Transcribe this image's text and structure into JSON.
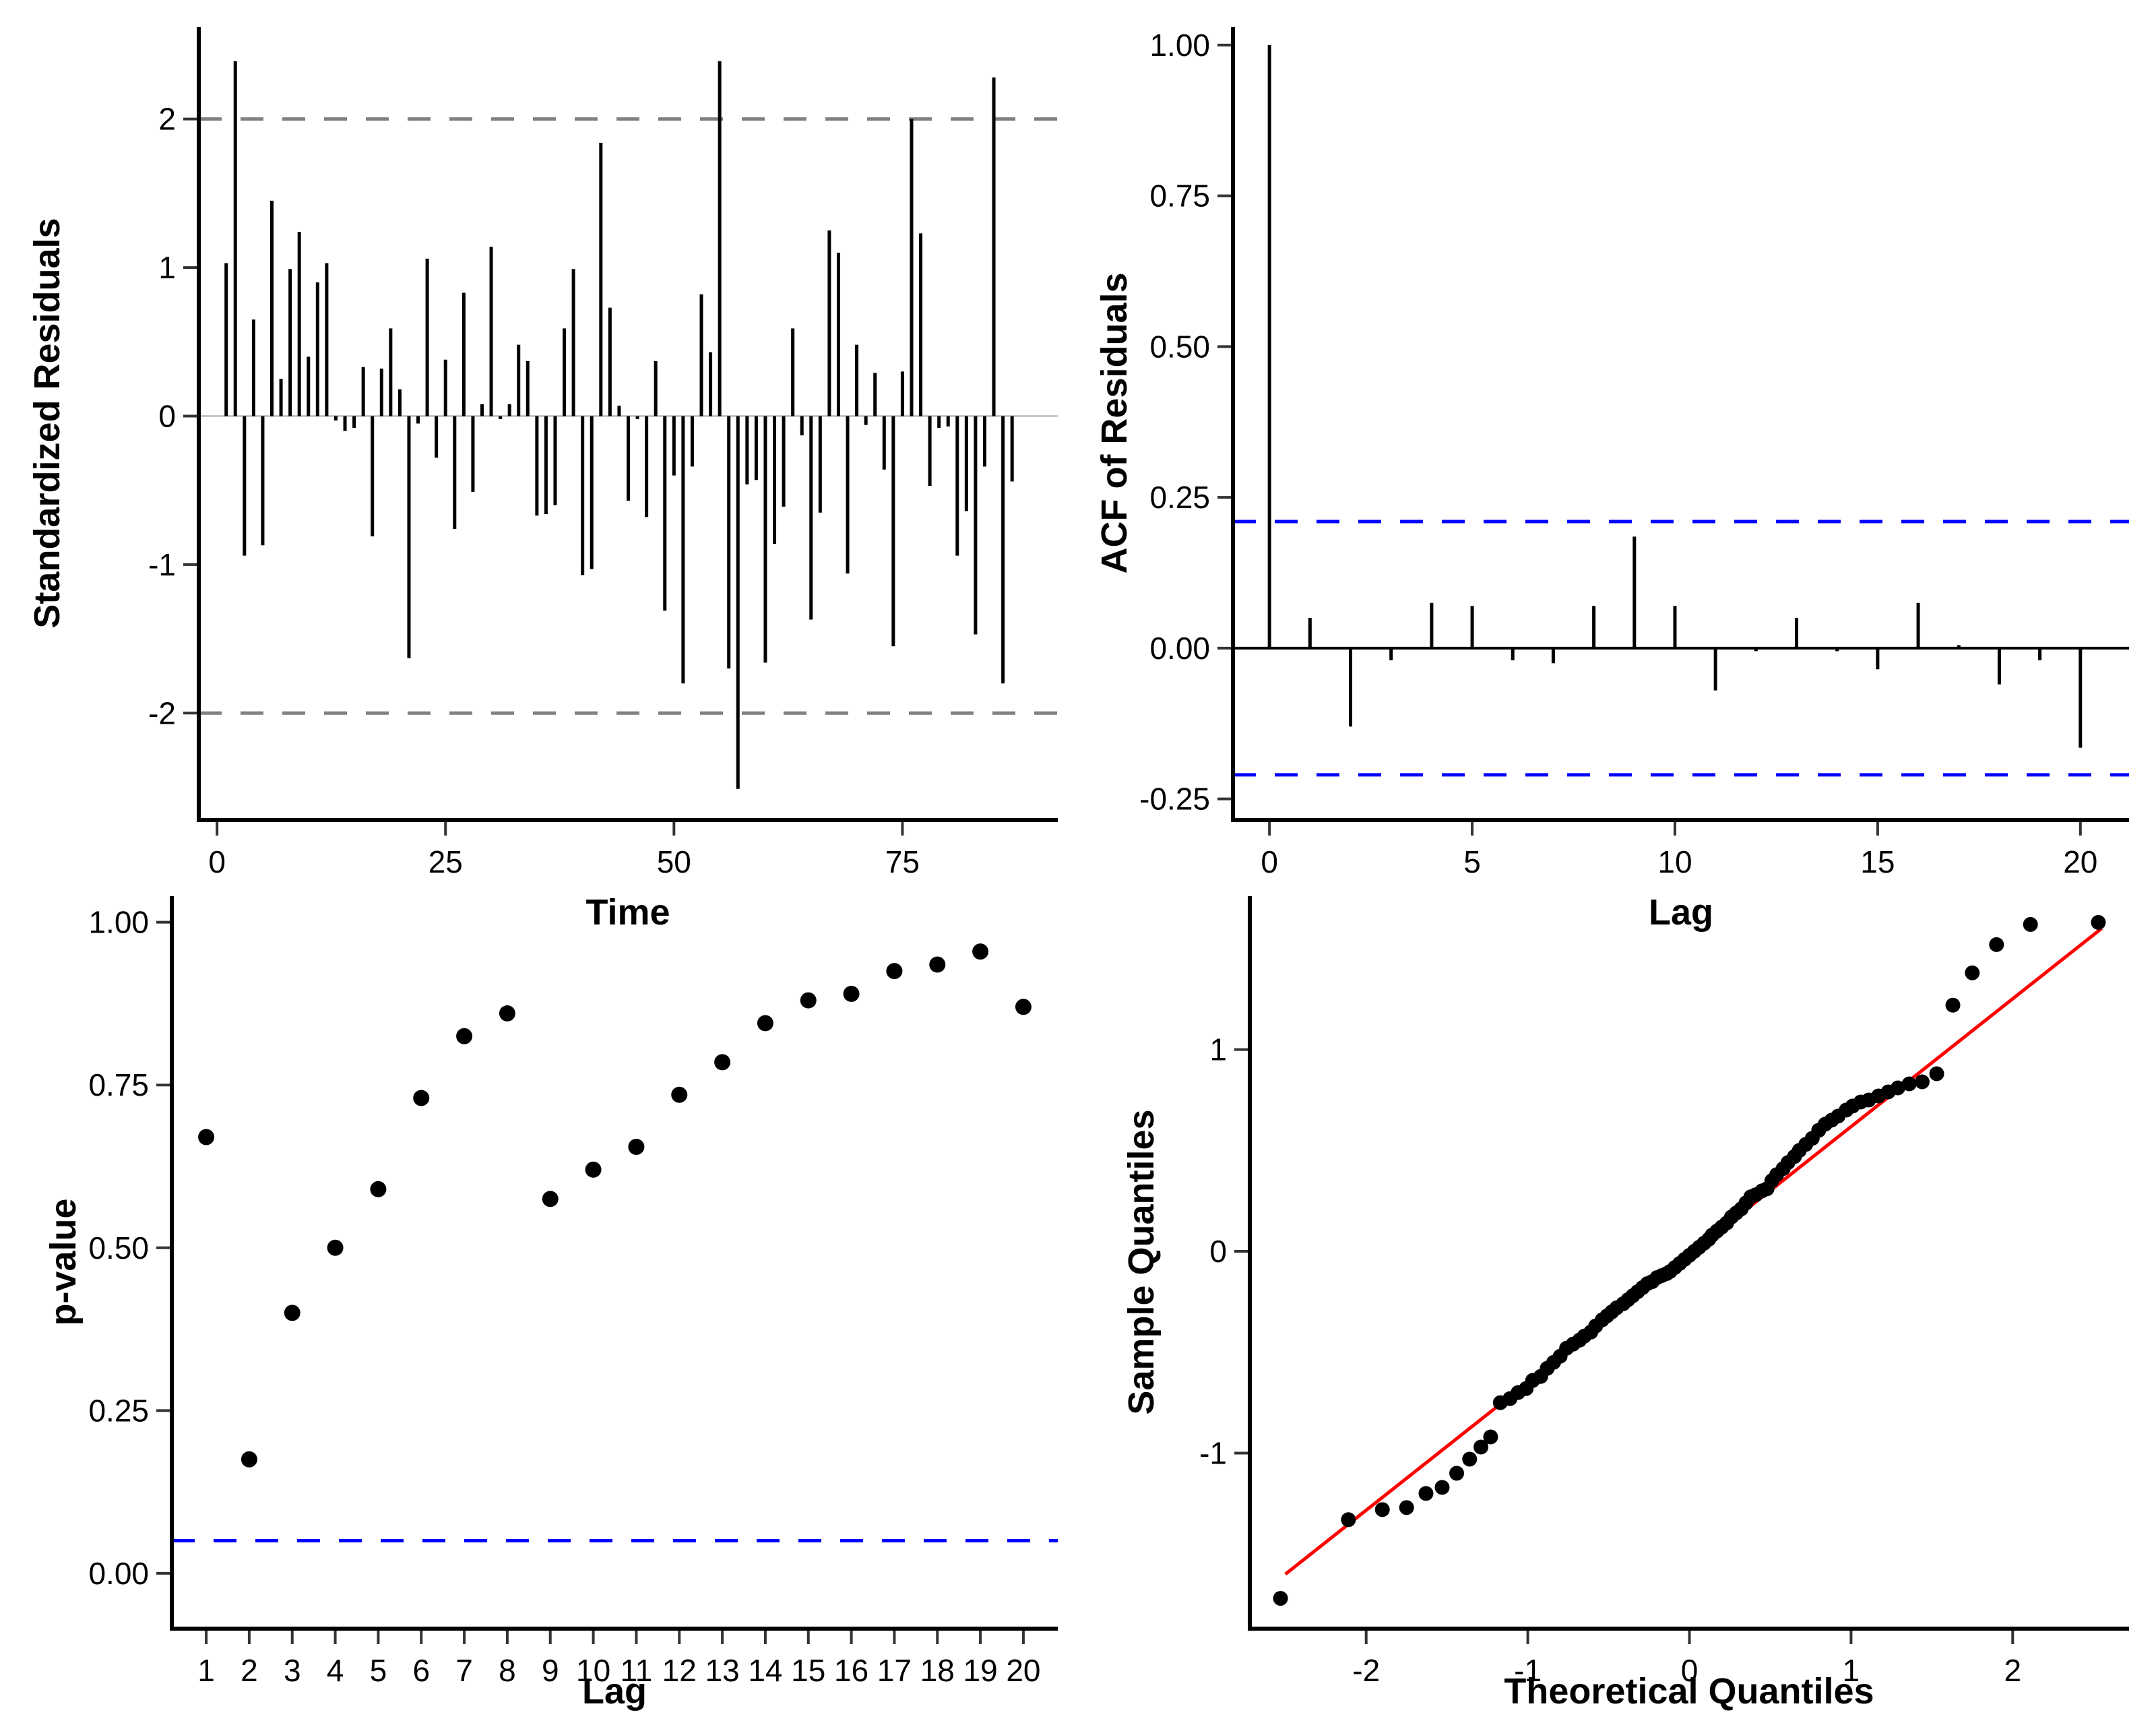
{
  "figure": {
    "background": "#FFFFFF",
    "description": "2x2 grid of time-series model residual diagnostic plots"
  },
  "colors": {
    "series": "#000000",
    "axis": "#000000",
    "tick": "#333333",
    "gray_dashed": "#808080",
    "zero_line_light": "#C8C8C8",
    "blue_dashed": "#0000FF",
    "red_line": "#FF0000"
  },
  "chart_data": [
    {
      "id": "residuals",
      "type": "bar",
      "title": "",
      "xlabel": "Time",
      "ylabel": "Standardized Residuals",
      "xlim": [
        -2,
        92
      ],
      "ylim": [
        -2.72,
        2.62
      ],
      "xticks": [
        0,
        25,
        50,
        75
      ],
      "xtick_labels": [
        "0",
        "25",
        "50",
        "75"
      ],
      "yticks": [
        -2,
        -1,
        0,
        1,
        2
      ],
      "ytick_labels": [
        "-2",
        "-1",
        "0",
        "1",
        "2"
      ],
      "grid": false,
      "legend": "none",
      "hlines": [
        {
          "y": 0,
          "style": "solid",
          "color": "#C8C8C8",
          "width": 3,
          "name": "zero-line"
        },
        {
          "y": 2,
          "style": "dashed",
          "color": "#808080",
          "width": 5,
          "name": "upper-2sd-line"
        },
        {
          "y": -2,
          "style": "dashed",
          "color": "#808080",
          "width": 5,
          "name": "lower-2sd-line"
        }
      ],
      "x": [
        1,
        2,
        3,
        4,
        5,
        6,
        7,
        8,
        9,
        10,
        11,
        12,
        13,
        14,
        15,
        16,
        17,
        18,
        19,
        20,
        21,
        22,
        23,
        24,
        25,
        26,
        27,
        28,
        29,
        30,
        31,
        32,
        33,
        34,
        35,
        36,
        37,
        38,
        39,
        40,
        41,
        42,
        43,
        44,
        45,
        46,
        47,
        48,
        49,
        50,
        51,
        52,
        53,
        54,
        55,
        56,
        57,
        58,
        59,
        60,
        61,
        62,
        63,
        64,
        65,
        66,
        67,
        68,
        69,
        70,
        71,
        72,
        73,
        74,
        75,
        76,
        77,
        78,
        79,
        80,
        81,
        82,
        83,
        84,
        85,
        86,
        87
      ],
      "values": [
        1.03,
        2.39,
        -0.94,
        0.65,
        -0.87,
        1.45,
        0.25,
        0.99,
        1.24,
        0.4,
        0.9,
        1.03,
        -0.03,
        -0.1,
        -0.08,
        0.33,
        -0.81,
        0.32,
        0.59,
        0.18,
        -1.63,
        -0.05,
        1.06,
        -0.28,
        0.38,
        -0.76,
        0.83,
        -0.51,
        0.08,
        1.14,
        -0.02,
        0.08,
        0.48,
        0.37,
        -0.67,
        -0.66,
        -0.6,
        0.59,
        0.99,
        -1.07,
        -1.03,
        1.84,
        0.73,
        0.07,
        -0.57,
        -0.02,
        -0.68,
        0.37,
        -1.31,
        -0.4,
        -1.8,
        -0.34,
        0.82,
        0.43,
        2.39,
        -1.7,
        -2.51,
        -0.46,
        -0.43,
        -1.66,
        -0.86,
        -0.61,
        0.59,
        -0.13,
        -1.37,
        -0.65,
        1.25,
        1.1,
        -1.06,
        0.48,
        -0.06,
        0.29,
        -0.36,
        -1.55,
        0.3,
        2.0,
        1.23,
        -0.47,
        -0.08,
        -0.07,
        -0.94,
        -0.64,
        -1.47,
        -0.34,
        2.28,
        -1.8,
        -0.44
      ]
    },
    {
      "id": "acf",
      "type": "bar",
      "title": "",
      "xlabel": "Lag",
      "ylabel": "ACF of Residuals",
      "xlim": [
        -0.9,
        21.2
      ],
      "ylim": [
        -0.285,
        1.03
      ],
      "xticks": [
        0,
        5,
        10,
        15,
        20
      ],
      "xtick_labels": [
        "0",
        "5",
        "10",
        "15",
        "20"
      ],
      "yticks": [
        1.0,
        0.75,
        0.5,
        0.25,
        0.0,
        -0.25
      ],
      "ytick_labels": [
        "1.00",
        "0.75",
        "0.50",
        "0.25",
        "0.00",
        "-0.25"
      ],
      "grid": false,
      "legend": "none",
      "confidence_bound": 0.21,
      "hlines": [
        {
          "y": 0,
          "style": "solid",
          "color": "#000000",
          "width": 4,
          "name": "zero-line"
        },
        {
          "y": 0.21,
          "style": "dashed",
          "color": "#0000FF",
          "width": 5,
          "name": "upper-confidence-line"
        },
        {
          "y": -0.21,
          "style": "dashed",
          "color": "#0000FF",
          "width": 5,
          "name": "lower-confidence-line"
        }
      ],
      "x": [
        0,
        1,
        2,
        3,
        4,
        5,
        6,
        7,
        8,
        9,
        10,
        11,
        12,
        13,
        14,
        15,
        16,
        17,
        18,
        19,
        20
      ],
      "values": [
        1.0,
        0.05,
        -0.13,
        -0.02,
        0.075,
        0.07,
        -0.02,
        -0.025,
        0.07,
        0.185,
        0.07,
        -0.07,
        -0.005,
        0.05,
        -0.005,
        -0.035,
        0.075,
        0.005,
        -0.06,
        -0.02,
        -0.165
      ]
    },
    {
      "id": "ljung-box-pvalues",
      "type": "scatter",
      "title": "",
      "xlabel": "Lag",
      "ylabel": "p-value",
      "xlim": [
        0.2,
        20.8
      ],
      "ylim": [
        -0.085,
        1.04
      ],
      "xticks": [
        1,
        2,
        3,
        4,
        5,
        6,
        7,
        8,
        9,
        10,
        11,
        12,
        13,
        14,
        15,
        16,
        17,
        18,
        19,
        20
      ],
      "xtick_labels": [
        "1",
        "2",
        "3",
        "4",
        "5",
        "6",
        "7",
        "8",
        "9",
        "10",
        "11",
        "12",
        "13",
        "14",
        "15",
        "16",
        "17",
        "18",
        "19",
        "20"
      ],
      "yticks": [
        1.0,
        0.75,
        0.5,
        0.25,
        0.0
      ],
      "ytick_labels": [
        "1.00",
        "0.75",
        "0.50",
        "0.25",
        "0.00"
      ],
      "grid": false,
      "legend": "none",
      "significance_level": 0.05,
      "hlines": [
        {
          "y": 0.05,
          "style": "dashed",
          "color": "#0000FF",
          "width": 5,
          "name": "significance-line"
        }
      ],
      "point_radius": 12,
      "x": [
        1,
        2,
        3,
        4,
        5,
        6,
        7,
        8,
        9,
        10,
        11,
        12,
        13,
        14,
        15,
        16,
        17,
        18,
        19,
        20
      ],
      "y": [
        0.67,
        0.175,
        0.4,
        0.5,
        0.59,
        0.73,
        0.825,
        0.86,
        0.575,
        0.62,
        0.655,
        0.735,
        0.785,
        0.845,
        0.88,
        0.89,
        0.925,
        0.935,
        0.955,
        0.87
      ]
    },
    {
      "id": "qq-plot",
      "type": "scatter",
      "title": "",
      "xlabel": "Theoretical Quantiles",
      "ylabel": "Sample Quantiles",
      "xlim": [
        -2.72,
        2.72
      ],
      "ylim": [
        -1.87,
        1.76
      ],
      "xticks": [
        -2,
        -1,
        0,
        1,
        2
      ],
      "xtick_labels": [
        "-2",
        "-1",
        "0",
        "1",
        "2"
      ],
      "yticks": [
        -1,
        0,
        1
      ],
      "ytick_labels": [
        "-1",
        "0",
        "1"
      ],
      "grid": false,
      "legend": "none",
      "refline": {
        "x1": -2.5,
        "y1": -1.6,
        "x2": 2.55,
        "y2": 1.6,
        "color": "#FF0000",
        "width": 5,
        "name": "qq-reference-line"
      },
      "point_radius": 11,
      "x": [
        -2.53,
        -2.11,
        -1.9,
        -1.75,
        -1.63,
        -1.53,
        -1.44,
        -1.36,
        -1.29,
        -1.23,
        -1.17,
        -1.11,
        -1.06,
        -1.01,
        -0.97,
        -0.92,
        -0.88,
        -0.84,
        -0.8,
        -0.76,
        -0.72,
        -0.68,
        -0.65,
        -0.61,
        -0.58,
        -0.54,
        -0.51,
        -0.48,
        -0.45,
        -0.41,
        -0.38,
        -0.35,
        -0.32,
        -0.29,
        -0.26,
        -0.23,
        -0.2,
        -0.17,
        -0.14,
        -0.12,
        -0.09,
        -0.06,
        -0.03,
        0.0,
        0.03,
        0.06,
        0.09,
        0.12,
        0.14,
        0.17,
        0.2,
        0.23,
        0.26,
        0.29,
        0.32,
        0.35,
        0.38,
        0.41,
        0.45,
        0.48,
        0.51,
        0.54,
        0.58,
        0.61,
        0.65,
        0.68,
        0.72,
        0.76,
        0.8,
        0.84,
        0.88,
        0.92,
        0.97,
        1.01,
        1.06,
        1.11,
        1.17,
        1.23,
        1.29,
        1.36,
        1.44,
        1.53,
        1.63,
        1.75,
        1.9,
        2.11,
        2.53
      ],
      "y": [
        -1.72,
        -1.33,
        -1.28,
        -1.27,
        -1.2,
        -1.17,
        -1.1,
        -1.03,
        -0.97,
        -0.92,
        -0.75,
        -0.73,
        -0.7,
        -0.68,
        -0.64,
        -0.62,
        -0.58,
        -0.55,
        -0.52,
        -0.48,
        -0.46,
        -0.44,
        -0.42,
        -0.4,
        -0.37,
        -0.34,
        -0.32,
        -0.3,
        -0.28,
        -0.26,
        -0.24,
        -0.22,
        -0.2,
        -0.18,
        -0.16,
        -0.15,
        -0.13,
        -0.12,
        -0.11,
        -0.1,
        -0.08,
        -0.06,
        -0.04,
        -0.02,
        0.0,
        0.02,
        0.04,
        0.06,
        0.08,
        0.1,
        0.12,
        0.14,
        0.17,
        0.19,
        0.21,
        0.24,
        0.27,
        0.28,
        0.3,
        0.31,
        0.35,
        0.38,
        0.41,
        0.44,
        0.47,
        0.5,
        0.53,
        0.56,
        0.6,
        0.63,
        0.65,
        0.67,
        0.7,
        0.72,
        0.74,
        0.75,
        0.77,
        0.79,
        0.81,
        0.83,
        0.84,
        0.88,
        1.22,
        1.38,
        1.52,
        1.62,
        1.63
      ]
    }
  ]
}
